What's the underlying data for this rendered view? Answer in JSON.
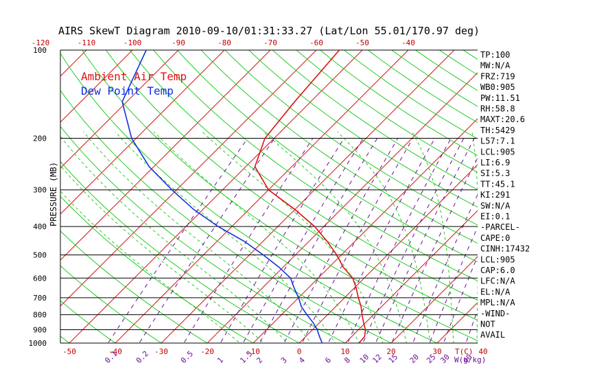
{
  "chart_data": {
    "type": "line",
    "title": "AIRS SkewT Diagram 2010-09-10/01:31:33.27 (Lat/Lon 55.01/170.97 deg)",
    "ylabel": "PRESSURE (MB)",
    "xlabel_right": "T(C)",
    "mixing_label": "W(g/kg)",
    "pressure_ticks": [
      "100",
      "200",
      "300",
      "400",
      "500",
      "600",
      "700",
      "800",
      "900",
      "1000"
    ],
    "pressure_ticks_values": [
      100,
      200,
      300,
      400,
      500,
      600,
      700,
      800,
      900,
      1000
    ],
    "top_temp_ticks": [
      "-120",
      "-110",
      "-100",
      "-90",
      "-80",
      "-70",
      "-60",
      "-50",
      "-40"
    ],
    "top_temp_ticks_values": [
      -120,
      -110,
      -100,
      -90,
      -80,
      -70,
      -60,
      -50,
      -40
    ],
    "bottom_temp_ticks": [
      "-50",
      "-40",
      "-30",
      "-20",
      "-10",
      "0",
      "10",
      "20",
      "30",
      "40"
    ],
    "bottom_temp_ticks_values": [
      -50,
      -40,
      -30,
      -20,
      -10,
      0,
      10,
      20,
      30,
      40
    ],
    "mixing_ratio_ticks": [
      "0.1",
      "0.2",
      "0.5",
      "1",
      "1.5",
      "2",
      "3",
      "4",
      "6",
      "8",
      "10",
      "12",
      "15",
      "20",
      "25",
      "30",
      "40"
    ],
    "mixing_ratio_values": [
      0.1,
      0.2,
      0.5,
      1,
      1.5,
      2,
      3,
      4,
      6,
      8,
      10,
      12,
      15,
      20,
      25,
      30,
      40
    ],
    "series": [
      {
        "name": "Ambient Air Temp",
        "color": "#e01010",
        "points": [
          {
            "p": 1000,
            "t": 13.0
          },
          {
            "p": 950,
            "t": 12.8
          },
          {
            "p": 900,
            "t": 11.5
          },
          {
            "p": 850,
            "t": 9.5
          },
          {
            "p": 800,
            "t": 7.5
          },
          {
            "p": 750,
            "t": 5.5
          },
          {
            "p": 700,
            "t": 3.0
          },
          {
            "p": 650,
            "t": 0.5
          },
          {
            "p": 600,
            "t": -2.5
          },
          {
            "p": 550,
            "t": -7.0
          },
          {
            "p": 500,
            "t": -11.0
          },
          {
            "p": 450,
            "t": -16.0
          },
          {
            "p": 400,
            "t": -22.0
          },
          {
            "p": 350,
            "t": -30.0
          },
          {
            "p": 300,
            "t": -40.0
          },
          {
            "p": 250,
            "t": -48.0
          },
          {
            "p": 200,
            "t": -52.0
          },
          {
            "p": 150,
            "t": -53.5
          },
          {
            "p": 100,
            "t": -55.0
          }
        ]
      },
      {
        "name": "Dew Point Temp",
        "color": "#1030e0",
        "points": [
          {
            "p": 1000,
            "t": 5.0
          },
          {
            "p": 950,
            "t": 3.0
          },
          {
            "p": 900,
            "t": 1.0
          },
          {
            "p": 850,
            "t": -1.5
          },
          {
            "p": 800,
            "t": -4.5
          },
          {
            "p": 750,
            "t": -7.5
          },
          {
            "p": 700,
            "t": -10.0
          },
          {
            "p": 650,
            "t": -13.0
          },
          {
            "p": 600,
            "t": -16.0
          },
          {
            "p": 550,
            "t": -21.0
          },
          {
            "p": 500,
            "t": -27.0
          },
          {
            "p": 450,
            "t": -34.0
          },
          {
            "p": 400,
            "t": -43.0
          },
          {
            "p": 350,
            "t": -52.0
          },
          {
            "p": 300,
            "t": -61.0
          },
          {
            "p": 250,
            "t": -71.0
          },
          {
            "p": 200,
            "t": -81.0
          },
          {
            "p": 150,
            "t": -91.0
          },
          {
            "p": 100,
            "t": -97.0
          }
        ]
      }
    ]
  },
  "legend": {
    "air": "Ambient Air Temp",
    "dew": "Dew Point Temp"
  },
  "indices": [
    "TP:100",
    "MW:N/A",
    "FRZ:719",
    "WB0:905",
    "PW:11.51",
    "RH:58.8",
    "MAXT:20.6",
    "TH:5429",
    "L57:7.1",
    "LCL:905",
    "LI:6.9",
    "SI:5.3",
    "TT:45.1",
    "KI:291",
    "SW:N/A",
    "EI:0.1",
    "-PARCEL-",
    "CAPE:0",
    "CINH:17432",
    "LCL:905",
    "CAP:6.0",
    "LFC:N/A",
    "EL:N/A",
    "MPL:N/A",
    "-WIND-",
    "NOT",
    "AVAIL"
  ],
  "colors": {
    "isotherm": "#e01010",
    "dry_adiabat": "#22cc22",
    "moist_adiabat": "#22cc22",
    "mixing_ratio": "#6a0d99",
    "air": "#e01010",
    "dew": "#1030e0",
    "axis": "#000000"
  }
}
